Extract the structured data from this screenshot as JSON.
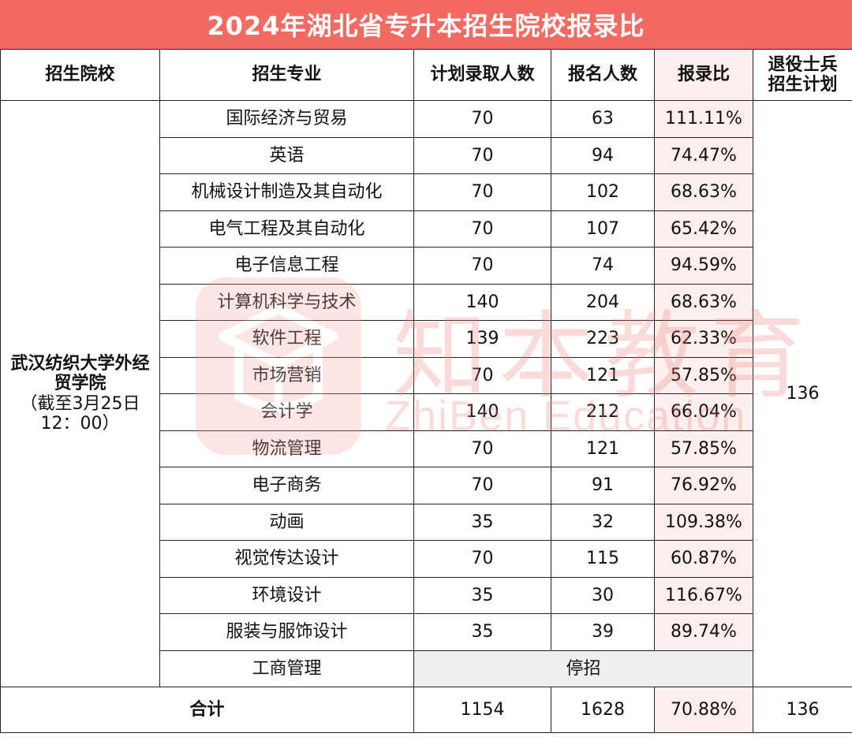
{
  "title": "2024年湖北省专升本招生院校报录比",
  "headers": {
    "school": "招生院校",
    "major": "招生专业",
    "plan": "计划录取人数",
    "applicants": "报名人数",
    "ratio": "报录比",
    "veteran": "退役士兵招生计划"
  },
  "school": {
    "name": "武汉纺织大学外经贸学院",
    "note": "（截至3月25日12：00）"
  },
  "rows": [
    {
      "major": "国际经济与贸易",
      "plan": "70",
      "applicants": "63",
      "ratio": "111.11%"
    },
    {
      "major": "英语",
      "plan": "70",
      "applicants": "94",
      "ratio": "74.47%"
    },
    {
      "major": "机械设计制造及其自动化",
      "plan": "70",
      "applicants": "102",
      "ratio": "68.63%"
    },
    {
      "major": "电气工程及其自动化",
      "plan": "70",
      "applicants": "107",
      "ratio": "65.42%"
    },
    {
      "major": "电子信息工程",
      "plan": "70",
      "applicants": "74",
      "ratio": "94.59%"
    },
    {
      "major": "计算机科学与技术",
      "plan": "140",
      "applicants": "204",
      "ratio": "68.63%"
    },
    {
      "major": "软件工程",
      "plan": "139",
      "applicants": "223",
      "ratio": "62.33%"
    },
    {
      "major": "市场营销",
      "plan": "70",
      "applicants": "121",
      "ratio": "57.85%"
    },
    {
      "major": "会计学",
      "plan": "140",
      "applicants": "212",
      "ratio": "66.04%"
    },
    {
      "major": "物流管理",
      "plan": "70",
      "applicants": "121",
      "ratio": "57.85%"
    },
    {
      "major": "电子商务",
      "plan": "70",
      "applicants": "91",
      "ratio": "76.92%"
    },
    {
      "major": "动画",
      "plan": "35",
      "applicants": "32",
      "ratio": "109.38%"
    },
    {
      "major": "视觉传达设计",
      "plan": "70",
      "applicants": "115",
      "ratio": "60.87%"
    },
    {
      "major": "环境设计",
      "plan": "35",
      "applicants": "30",
      "ratio": "116.67%"
    },
    {
      "major": "服装与服饰设计",
      "plan": "35",
      "applicants": "39",
      "ratio": "89.74%"
    }
  ],
  "suspended_row": {
    "major": "工商管理",
    "status": "停招"
  },
  "veteran_plan": "136",
  "total": {
    "label": "合计",
    "plan": "1154",
    "applicants": "1628",
    "ratio": "70.88%",
    "veteran": "136"
  },
  "watermark": {
    "cn": "知本教育",
    "en": "ZhiBen Education"
  },
  "colors": {
    "title_bg": "#f26a62",
    "ratio_bg": "#fcefee",
    "suspended_bg": "#efefef",
    "watermark": "#f0827a"
  }
}
